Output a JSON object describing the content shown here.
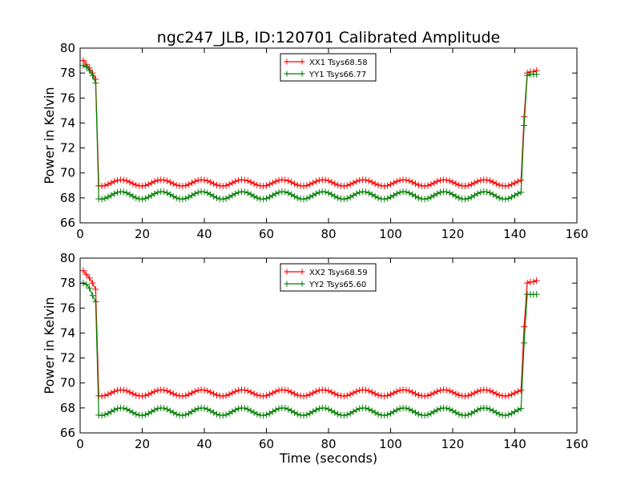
{
  "chart_data": {
    "type": "line",
    "title": "ngc247_JLB, ID:120701 Calibrated Amplitude",
    "panels": [
      {
        "ylabel": "Power in Kelvin",
        "xlabel": "",
        "xlim": [
          0,
          160
        ],
        "ylim": [
          66,
          80
        ],
        "xticks": [
          "0",
          "20",
          "40",
          "60",
          "80",
          "100",
          "120",
          "140",
          "160"
        ],
        "yticks": [
          "66",
          "68",
          "70",
          "72",
          "74",
          "76",
          "78",
          "80"
        ],
        "legend_position": "top-center",
        "grid": false,
        "series": [
          {
            "name": "XX1 Tsys68.58",
            "color": "#ff0000",
            "baseline": 69.2,
            "amp": 0.25,
            "start": [
              79.0,
              78.7,
              78.4,
              78.0,
              77.5
            ],
            "end": [
              74.5,
              78.0,
              78.1,
              78.1,
              78.2
            ]
          },
          {
            "name": "YY1 Tsys66.77",
            "color": "#008000",
            "baseline": 68.2,
            "amp": 0.3,
            "start": [
              78.6,
              78.5,
              78.2,
              77.8,
              77.2
            ],
            "end": [
              73.8,
              77.8,
              77.9,
              77.9,
              77.9
            ]
          }
        ]
      },
      {
        "ylabel": "Power in Kelvin",
        "xlabel": "Time (seconds)",
        "xlim": [
          0,
          160
        ],
        "ylim": [
          66,
          80
        ],
        "xticks": [
          "0",
          "20",
          "40",
          "60",
          "80",
          "100",
          "120",
          "140",
          "160"
        ],
        "yticks": [
          "66",
          "68",
          "70",
          "72",
          "74",
          "76",
          "78",
          "80"
        ],
        "legend_position": "top-center",
        "grid": false,
        "series": [
          {
            "name": "XX2 Tsys68.59",
            "color": "#ff0000",
            "baseline": 69.2,
            "amp": 0.25,
            "start": [
              79.0,
              78.7,
              78.4,
              78.0,
              77.5
            ],
            "end": [
              74.5,
              78.0,
              78.1,
              78.1,
              78.2
            ]
          },
          {
            "name": "YY2 Tsys65.60",
            "color": "#008000",
            "baseline": 67.7,
            "amp": 0.3,
            "start": [
              78.0,
              77.9,
              77.6,
              77.0,
              76.5
            ],
            "end": [
              73.2,
              77.1,
              77.1,
              77.1,
              77.1
            ]
          }
        ]
      }
    ],
    "x": {
      "start_times": [
        1,
        2,
        3,
        4,
        5
      ],
      "flat_start": 6,
      "flat_end": 142,
      "end_times": [
        143,
        144,
        145,
        146,
        147
      ],
      "period": 13
    }
  }
}
